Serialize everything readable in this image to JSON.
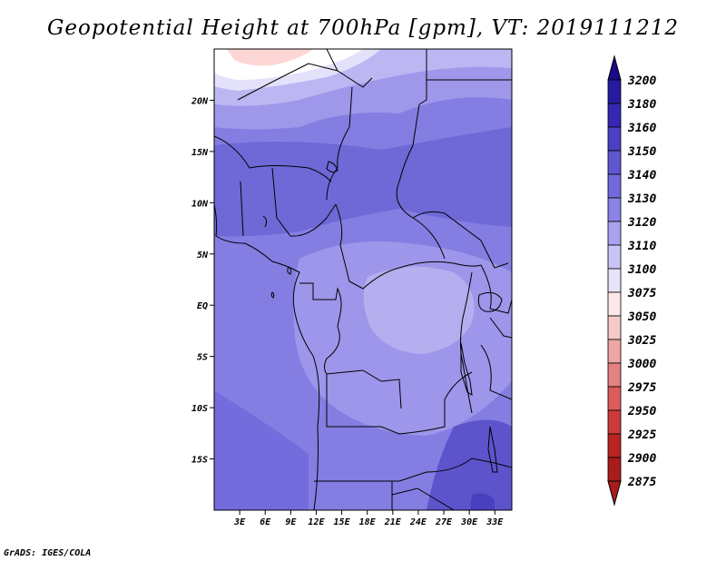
{
  "title": "Geopotential Height at 700hPa [gpm], VT: 2019111212",
  "credit": "GrADS: IGES/COLA",
  "chart_data": {
    "type": "heatmap",
    "variable": "Geopotential Height",
    "level": "700hPa",
    "units": "gpm",
    "valid_time": "2019111212",
    "lon_range_deg": [
      0,
      35
    ],
    "lat_range_deg": [
      -20,
      25
    ],
    "x_tick_labels": [
      "3E",
      "6E",
      "9E",
      "12E",
      "15E",
      "18E",
      "21E",
      "24E",
      "27E",
      "30E",
      "33E"
    ],
    "x_tick_values": [
      3,
      6,
      9,
      12,
      15,
      18,
      21,
      24,
      27,
      30,
      33
    ],
    "y_tick_labels": [
      "20N",
      "15N",
      "10N",
      "5N",
      "EQ",
      "5S",
      "10S",
      "15S"
    ],
    "y_tick_values": [
      20,
      15,
      10,
      5,
      0,
      -5,
      -10,
      -15
    ],
    "colorbar": {
      "levels": [
        3200,
        3180,
        3160,
        3150,
        3140,
        3130,
        3120,
        3110,
        3100,
        3075,
        3050,
        3025,
        3000,
        2975,
        2950,
        2925,
        2900,
        2875
      ],
      "colors": [
        "#1a0a8a",
        "#261aa0",
        "#3527b3",
        "#4b40c4",
        "#5f57d0",
        "#7269dc",
        "#8b83e6",
        "#a9a2ee",
        "#c9c4f5",
        "#e6e3fb",
        "#fce8e8",
        "#f6c9c9",
        "#eea5a5",
        "#e48181",
        "#da5c5c",
        "#cd3a3a",
        "#bb2323",
        "#a81c1c"
      ]
    },
    "fill_levels": [
      {
        "name": "far-north-ridge",
        "value": 3075,
        "color": "#fdd7d7"
      },
      {
        "name": "north-fringe",
        "value": 3100,
        "color": "#ffffff"
      },
      {
        "name": "north-band",
        "value": 3110,
        "color": "#c3bef2"
      },
      {
        "name": "north-band-2",
        "value": 3120,
        "color": "#a8a1ee"
      },
      {
        "name": "background",
        "value": 3130,
        "color": "#8680e4"
      },
      {
        "name": "sahel-band",
        "value": 3140,
        "color": "#716ad9"
      },
      {
        "name": "congo-high",
        "value": 3120,
        "color": "#9f98ec"
      },
      {
        "name": "congo-core",
        "value": 3110,
        "color": "#b8b2f2"
      },
      {
        "name": "southeast-high",
        "value": 3150,
        "color": "#5e55cf"
      }
    ]
  }
}
